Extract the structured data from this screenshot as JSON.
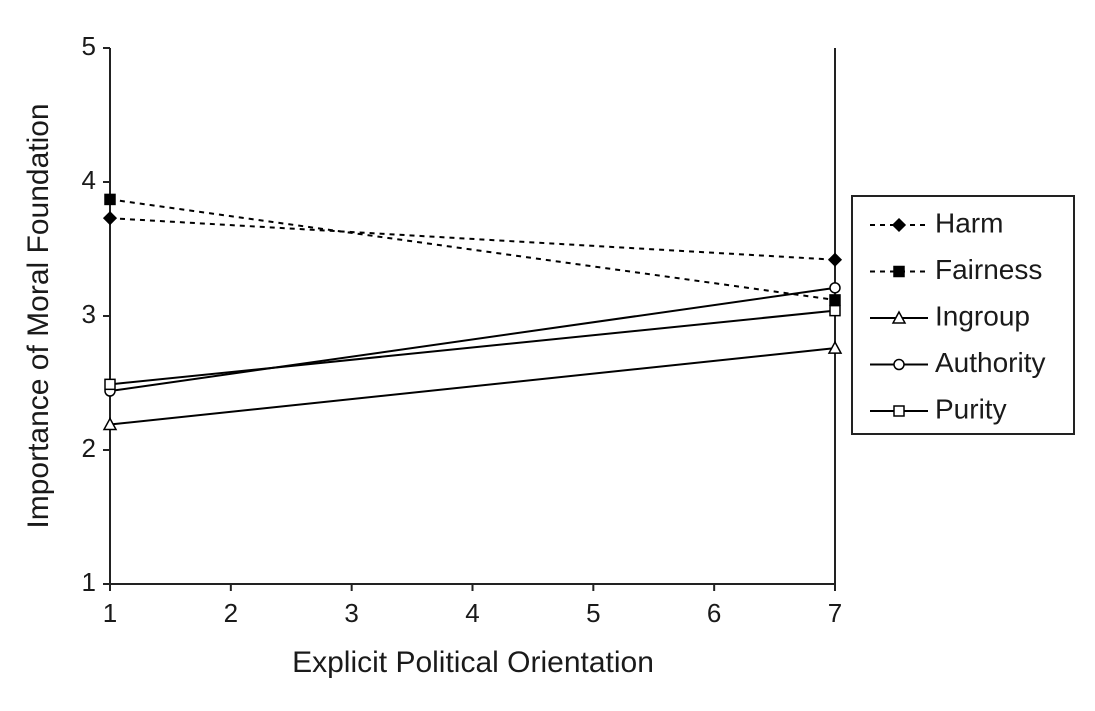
{
  "chart_data": {
    "type": "line",
    "x_label": "Explicit Political Orientation",
    "y_label": "Importance of Moral Foundation",
    "x": [
      1,
      7
    ],
    "series": [
      {
        "name": "Harm",
        "color": "#000000",
        "dash": true,
        "marker": "diamond",
        "filled": true,
        "values": [
          3.73,
          3.42
        ]
      },
      {
        "name": "Fairness",
        "color": "#000000",
        "dash": true,
        "marker": "square",
        "filled": true,
        "values": [
          3.87,
          3.12
        ]
      },
      {
        "name": "Ingroup",
        "color": "#000000",
        "dash": false,
        "marker": "triangle",
        "filled": false,
        "values": [
          2.19,
          2.76
        ]
      },
      {
        "name": "Authority",
        "color": "#000000",
        "dash": false,
        "marker": "circle",
        "filled": false,
        "values": [
          2.44,
          3.21
        ]
      },
      {
        "name": "Purity",
        "color": "#000000",
        "dash": false,
        "marker": "square",
        "filled": false,
        "values": [
          2.49,
          3.04
        ]
      }
    ],
    "xlim": [
      1,
      7
    ],
    "xticks": [
      1,
      2,
      3,
      4,
      5,
      6,
      7
    ],
    "ylim": [
      1,
      5
    ],
    "yticks": [
      1,
      2,
      3,
      4,
      5
    ],
    "grid": false,
    "legend": "right"
  }
}
